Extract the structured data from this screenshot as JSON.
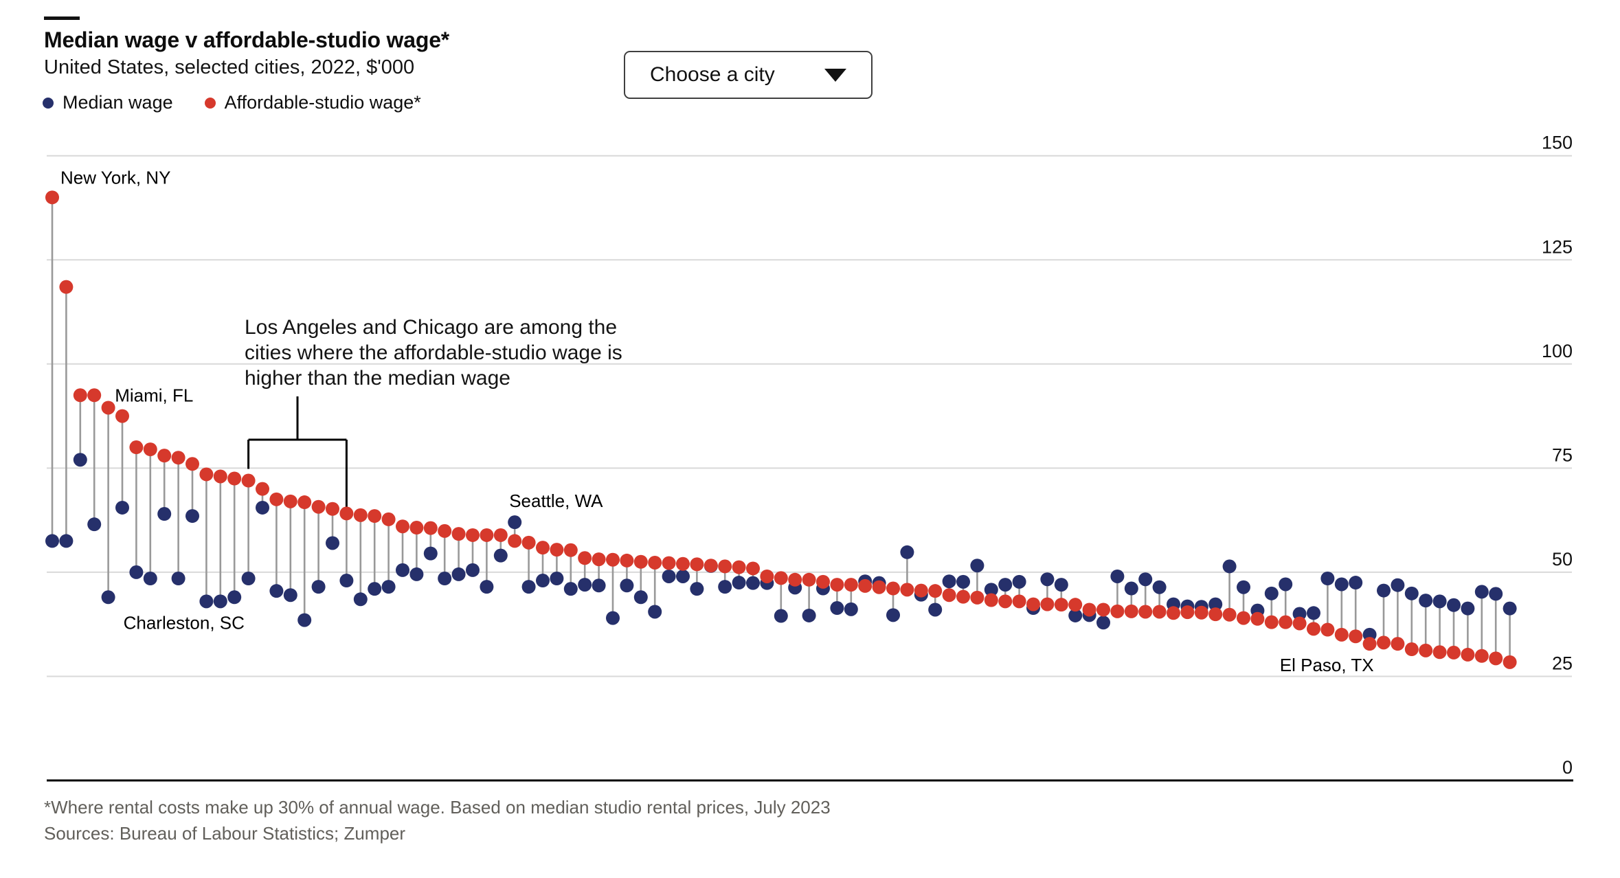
{
  "header": {
    "title": "Median wage v affordable-studio wage*",
    "subtitle": "United States, selected cities, 2022, $'000",
    "legend": [
      {
        "label": "Median wage",
        "color": "#26306b",
        "icon": "dot"
      },
      {
        "label": "Affordable-studio wage*",
        "color": "#d6392c",
        "icon": "dot"
      }
    ],
    "dropdown": {
      "label": "Choose a city",
      "icon": "caret-down"
    }
  },
  "annotation": {
    "lines": [
      "Los Angeles and Chicago are among the",
      "cities where the affordable-studio wage is",
      "higher than the median wage"
    ]
  },
  "footer": {
    "footnote": "*Where rental costs make up 30% of annual wage. Based on median studio rental prices, July 2023",
    "sources": "Sources: Bureau of Labour Statistics; Zumper"
  },
  "chart_data": {
    "type": "dumbbell",
    "title": "Median wage v affordable-studio wage*",
    "subtitle": "United States, selected cities, 2022, $'000",
    "unit": "$'000",
    "ylim": [
      0,
      150
    ],
    "yticks": [
      150,
      125,
      100,
      75,
      50,
      25,
      0
    ],
    "grid": "horizontal",
    "legend_position": "top-left",
    "axis_side": "right",
    "series_names": [
      "Affordable-studio wage*",
      "Median wage"
    ],
    "colors": {
      "studio": "#d6392c",
      "median": "#26306b",
      "stem": "#999999",
      "grid": "#d9d9d9",
      "axis": "#000000"
    },
    "bracket": {
      "from_index": 14,
      "to_index": 21
    },
    "points": [
      {
        "studio": 140.0,
        "median": 57.5,
        "label": "New York, NY",
        "placement": "above"
      },
      {
        "studio": 118.5,
        "median": 57.5
      },
      {
        "studio": 92.5,
        "median": 77.0
      },
      {
        "studio": 92.5,
        "median": 61.5,
        "label": "Miami, FL",
        "placement": "right"
      },
      {
        "studio": 89.5,
        "median": 44.0,
        "label": "Charleston, SC",
        "placement": "below-right"
      },
      {
        "studio": 87.5,
        "median": 65.5
      },
      {
        "studio": 80.0,
        "median": 50.0
      },
      {
        "studio": 79.5,
        "median": 48.5
      },
      {
        "studio": 78.0,
        "median": 64.0
      },
      {
        "studio": 77.5,
        "median": 48.5
      },
      {
        "studio": 76.0,
        "median": 63.5
      },
      {
        "studio": 73.5,
        "median": 43.0
      },
      {
        "studio": 73.0,
        "median": 43.0
      },
      {
        "studio": 72.5,
        "median": 44.0
      },
      {
        "studio": 72.0,
        "median": 48.5
      },
      {
        "studio": 70.0,
        "median": 65.5
      },
      {
        "studio": 67.5,
        "median": 45.5
      },
      {
        "studio": 67.0,
        "median": 44.5
      },
      {
        "studio": 66.8,
        "median": 38.5
      },
      {
        "studio": 65.7,
        "median": 46.5
      },
      {
        "studio": 65.2,
        "median": 57.0
      },
      {
        "studio": 64.1,
        "median": 48.0
      },
      {
        "studio": 63.7,
        "median": 43.5
      },
      {
        "studio": 63.5,
        "median": 46.0
      },
      {
        "studio": 62.7,
        "median": 46.5
      },
      {
        "studio": 61.0,
        "median": 50.5
      },
      {
        "studio": 60.7,
        "median": 49.5
      },
      {
        "studio": 60.6,
        "median": 54.5
      },
      {
        "studio": 59.9,
        "median": 48.5
      },
      {
        "studio": 59.2,
        "median": 49.5
      },
      {
        "studio": 58.9,
        "median": 50.5
      },
      {
        "studio": 58.9,
        "median": 46.5
      },
      {
        "studio": 58.9,
        "median": 54.0
      },
      {
        "studio": 57.5,
        "median": 62.0,
        "label": "Seattle, WA",
        "placement": "above-point"
      },
      {
        "studio": 57.1,
        "median": 46.5
      },
      {
        "studio": 55.9,
        "median": 48.0
      },
      {
        "studio": 55.4,
        "median": 48.5
      },
      {
        "studio": 55.3,
        "median": 46.0
      },
      {
        "studio": 53.4,
        "median": 47.0
      },
      {
        "studio": 53.1,
        "median": 46.8
      },
      {
        "studio": 53.0,
        "median": 39.0
      },
      {
        "studio": 52.8,
        "median": 46.8
      },
      {
        "studio": 52.5,
        "median": 44.0
      },
      {
        "studio": 52.3,
        "median": 40.5
      },
      {
        "studio": 52.2,
        "median": 49.0
      },
      {
        "studio": 52.0,
        "median": 49.0
      },
      {
        "studio": 51.9,
        "median": 46.0
      },
      {
        "studio": 51.6,
        "median": 51.5
      },
      {
        "studio": 51.4,
        "median": 46.5
      },
      {
        "studio": 51.2,
        "median": 47.5
      },
      {
        "studio": 50.9,
        "median": 47.4
      },
      {
        "studio": 49.0,
        "median": 47.4
      },
      {
        "studio": 48.6,
        "median": 39.5
      },
      {
        "studio": 48.2,
        "median": 46.3
      },
      {
        "studio": 48.2,
        "median": 39.6
      },
      {
        "studio": 47.7,
        "median": 46.1
      },
      {
        "studio": 47.0,
        "median": 41.4
      },
      {
        "studio": 47.0,
        "median": 41.1
      },
      {
        "studio": 46.7,
        "median": 47.8
      },
      {
        "studio": 46.4,
        "median": 47.4
      },
      {
        "studio": 46.1,
        "median": 39.7
      },
      {
        "studio": 45.8,
        "median": 54.8
      },
      {
        "studio": 45.6,
        "median": 44.6
      },
      {
        "studio": 45.5,
        "median": 41.0
      },
      {
        "studio": 44.5,
        "median": 47.8
      },
      {
        "studio": 44.1,
        "median": 47.7
      },
      {
        "studio": 43.9,
        "median": 51.6
      },
      {
        "studio": 43.3,
        "median": 45.8
      },
      {
        "studio": 43.0,
        "median": 47.0
      },
      {
        "studio": 43.0,
        "median": 47.7
      },
      {
        "studio": 42.3,
        "median": 41.4
      },
      {
        "studio": 42.3,
        "median": 48.3
      },
      {
        "studio": 42.2,
        "median": 47.0
      },
      {
        "studio": 42.2,
        "median": 39.6
      },
      {
        "studio": 41.0,
        "median": 39.7
      },
      {
        "studio": 41.0,
        "median": 37.9
      },
      {
        "studio": 40.6,
        "median": 49.0
      },
      {
        "studio": 40.6,
        "median": 46.1
      },
      {
        "studio": 40.5,
        "median": 48.3
      },
      {
        "studio": 40.5,
        "median": 46.4
      },
      {
        "studio": 40.2,
        "median": 42.3
      },
      {
        "studio": 40.4,
        "median": 41.8
      },
      {
        "studio": 40.3,
        "median": 41.7
      },
      {
        "studio": 39.9,
        "median": 42.3
      },
      {
        "studio": 39.8,
        "median": 51.4
      },
      {
        "studio": 39.0,
        "median": 46.4
      },
      {
        "studio": 38.8,
        "median": 40.8
      },
      {
        "studio": 38.0,
        "median": 44.9
      },
      {
        "studio": 38.0,
        "median": 47.1
      },
      {
        "studio": 37.7,
        "median": 40.0
      },
      {
        "studio": 36.4,
        "median": 40.2
      },
      {
        "studio": 36.2,
        "median": 48.5
      },
      {
        "studio": 35.0,
        "median": 47.1
      },
      {
        "studio": 34.6,
        "median": 47.5
      },
      {
        "studio": 32.8,
        "median": 35.0,
        "label": "El Paso, TX",
        "placement": "below-left"
      },
      {
        "studio": 33.1,
        "median": 45.6
      },
      {
        "studio": 32.8,
        "median": 46.9
      },
      {
        "studio": 31.5,
        "median": 44.9
      },
      {
        "studio": 31.2,
        "median": 43.2
      },
      {
        "studio": 30.8,
        "median": 43.0
      },
      {
        "studio": 30.7,
        "median": 42.1
      },
      {
        "studio": 30.2,
        "median": 41.3
      },
      {
        "studio": 29.9,
        "median": 45.3
      },
      {
        "studio": 29.3,
        "median": 44.8
      },
      {
        "studio": 28.4,
        "median": 41.3
      }
    ]
  }
}
